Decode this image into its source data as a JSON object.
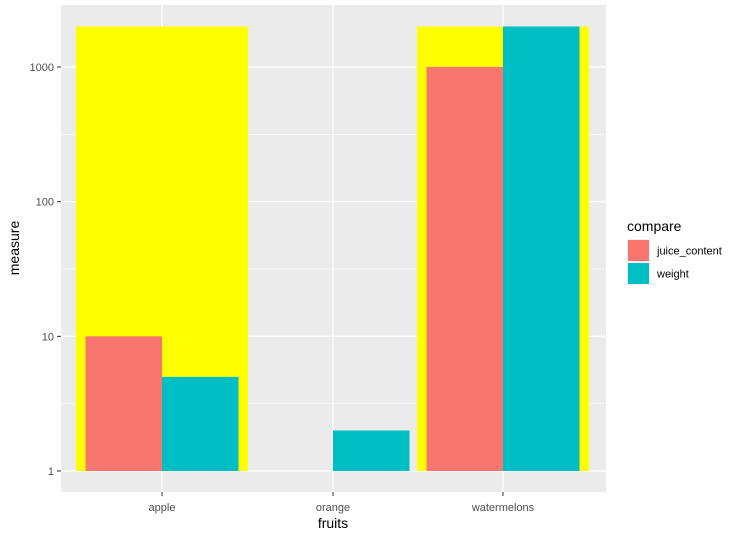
{
  "chart_data": {
    "type": "bar",
    "title": "",
    "xlabel": "fruits",
    "ylabel": "measure",
    "y_scale": "log10",
    "ylim": [
      0.85,
      2400
    ],
    "y_ticks": [
      1,
      10,
      100,
      1000
    ],
    "y_tick_labels": [
      "1",
      "10",
      "100",
      "1000"
    ],
    "categories": [
      "apple",
      "orange",
      "watermelons"
    ],
    "series": [
      {
        "name": "juice_content",
        "color": "#F8766D",
        "values": [
          10,
          null,
          1000
        ]
      },
      {
        "name": "weight",
        "color": "#00BFC4",
        "values": [
          5,
          2,
          2000
        ]
      }
    ],
    "highlight": {
      "color": "#FFFF00",
      "categories": [
        "apple",
        "watermelons"
      ],
      "value": 2000
    },
    "legend": {
      "title": "compare",
      "position": "right",
      "items": [
        "juice_content",
        "weight"
      ]
    },
    "grid": true,
    "panel_background": "#EBEBEB",
    "grid_color": "#FFFFFF"
  }
}
